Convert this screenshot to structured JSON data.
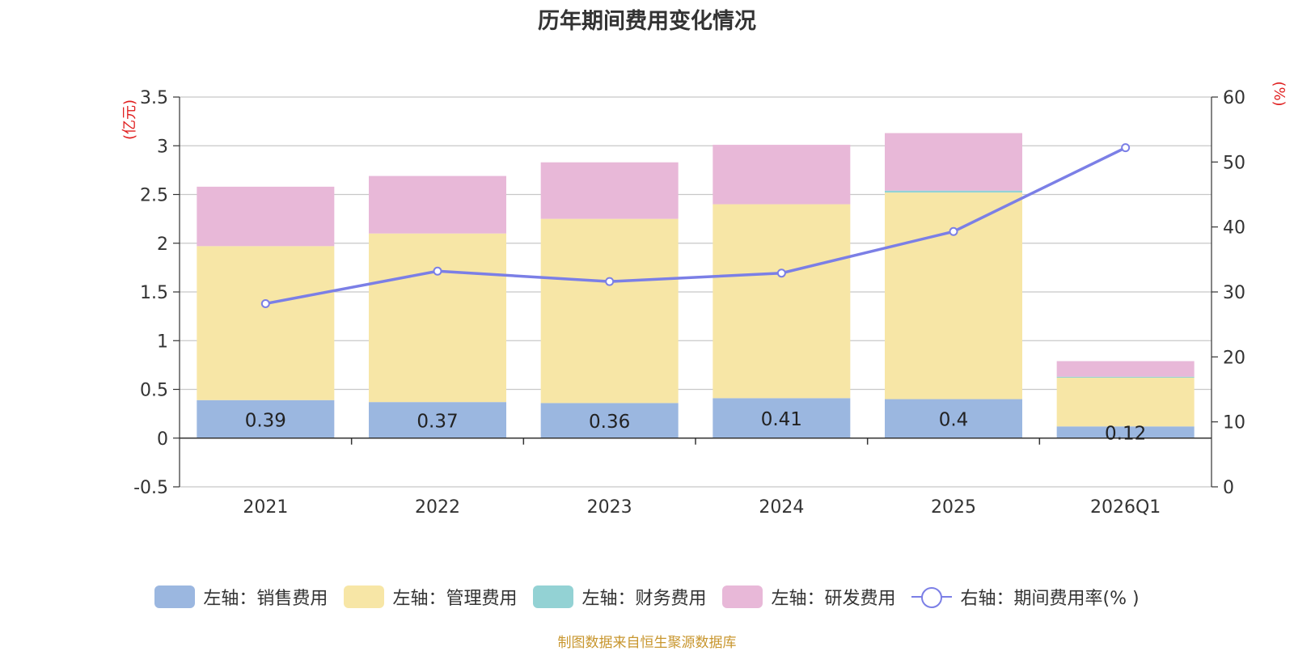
{
  "chart_data": {
    "type": "bar",
    "title": "历年期间费用变化情况",
    "categories": [
      "2021",
      "2022",
      "2023",
      "2024",
      "2025",
      "2026Q1"
    ],
    "series": [
      {
        "name": "左轴：销售费用",
        "axis": "left",
        "color": "#9bb7e0",
        "values": [
          0.39,
          0.37,
          0.36,
          0.41,
          0.4,
          0.12
        ],
        "data_labels": [
          "0.39",
          "0.37",
          "0.36",
          "0.41",
          "0.4",
          "0.12"
        ]
      },
      {
        "name": "左轴：管理费用",
        "axis": "left",
        "color": "#f7e6a6",
        "values": [
          1.58,
          1.73,
          1.89,
          1.99,
          2.12,
          0.5
        ]
      },
      {
        "name": "左轴：财务费用",
        "axis": "left",
        "color": "#93d2d4",
        "values": [
          0.0,
          0.0,
          0.0,
          0.0,
          0.02,
          0.01
        ]
      },
      {
        "name": "左轴：研发费用",
        "axis": "left",
        "color": "#e8b8d8",
        "values": [
          0.61,
          0.59,
          0.58,
          0.61,
          0.59,
          0.16
        ]
      },
      {
        "name": "右轴：期间费用率(% )",
        "axis": "right",
        "type": "line",
        "color": "#7b7fe6",
        "values": [
          28.2,
          33.2,
          31.6,
          32.9,
          39.3,
          52.2
        ]
      }
    ],
    "left_axis": {
      "label": "(亿元)",
      "ylim": [
        -0.5,
        3.5
      ],
      "ticks": [
        "3.5",
        "3",
        "2.5",
        "2",
        "1.5",
        "1",
        "0.5",
        "0",
        "-0.5"
      ],
      "tick_values": [
        3.5,
        3,
        2.5,
        2,
        1.5,
        1,
        0.5,
        0,
        -0.5
      ]
    },
    "right_axis": {
      "label": "(%)",
      "ylim": [
        0,
        60
      ],
      "ticks": [
        "60",
        "50",
        "40",
        "30",
        "20",
        "10",
        "0"
      ],
      "tick_values": [
        60,
        50,
        40,
        30,
        20,
        10,
        0
      ]
    },
    "grid": true,
    "legend_position": "bottom"
  },
  "source_note": "制图数据来自恒生聚源数据库"
}
